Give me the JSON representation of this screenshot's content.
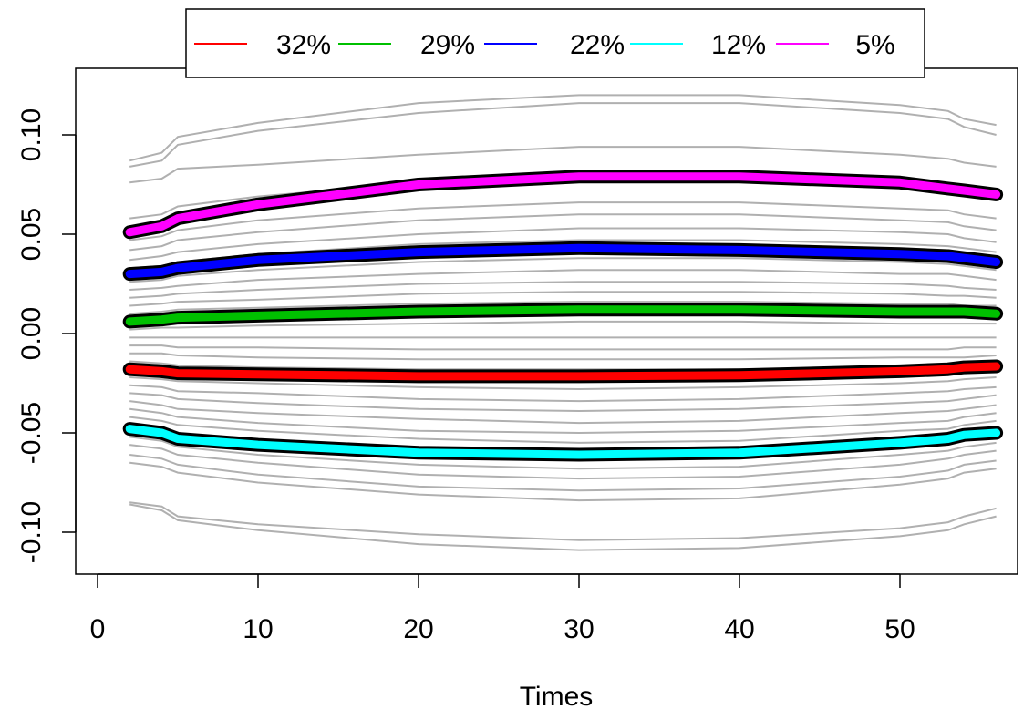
{
  "chart_data": {
    "type": "line",
    "title": "",
    "xlabel": "Times",
    "ylabel": "",
    "xlim": [
      0,
      56
    ],
    "ylim": [
      -0.12,
      0.125
    ],
    "x_ticks": [
      0,
      10,
      20,
      30,
      40,
      50
    ],
    "x_tick_labels": [
      "0",
      "10",
      "20",
      "30",
      "40",
      "50"
    ],
    "y_ticks": [
      -0.1,
      -0.05,
      0.0,
      0.05,
      0.1
    ],
    "y_tick_labels": [
      "-0.10",
      "-0.05",
      "0.00",
      "0.05",
      "0.10"
    ],
    "grid": false,
    "legend_position": "top",
    "x": [
      2,
      4,
      5,
      10,
      20,
      30,
      40,
      50,
      53,
      54,
      56
    ],
    "series": [
      {
        "name": "32%",
        "color": "#ff0000",
        "values": [
          -0.018,
          -0.019,
          -0.02,
          -0.0205,
          -0.0215,
          -0.0215,
          -0.021,
          -0.019,
          -0.018,
          -0.017,
          -0.0165
        ]
      },
      {
        "name": "29%",
        "color": "#00c000",
        "values": [
          0.006,
          0.007,
          0.008,
          0.009,
          0.011,
          0.012,
          0.012,
          0.011,
          0.011,
          0.011,
          0.01
        ]
      },
      {
        "name": "22%",
        "color": "#0000ff",
        "values": [
          0.03,
          0.031,
          0.033,
          0.037,
          0.041,
          0.043,
          0.042,
          0.04,
          0.039,
          0.038,
          0.036
        ]
      },
      {
        "name": "12%",
        "color": "#00ffff",
        "values": [
          -0.048,
          -0.05,
          -0.053,
          -0.056,
          -0.06,
          -0.061,
          -0.06,
          -0.055,
          -0.053,
          -0.051,
          -0.05
        ]
      },
      {
        "name": "5%",
        "color": "#ff00ff",
        "values": [
          0.051,
          0.054,
          0.058,
          0.065,
          0.075,
          0.079,
          0.079,
          0.076,
          0.073,
          0.072,
          0.07
        ]
      }
    ],
    "background_series_color": "#b0b0b0",
    "background_series": [
      [
        0.087,
        0.091,
        0.099,
        0.106,
        0.116,
        0.12,
        0.12,
        0.115,
        0.112,
        0.108,
        0.105
      ],
      [
        0.084,
        0.087,
        0.095,
        0.102,
        0.111,
        0.116,
        0.116,
        0.111,
        0.108,
        0.104,
        0.1
      ],
      [
        0.076,
        0.078,
        0.083,
        0.085,
        0.09,
        0.094,
        0.094,
        0.09,
        0.088,
        0.086,
        0.084
      ],
      [
        0.058,
        0.06,
        0.064,
        0.069,
        0.076,
        0.08,
        0.08,
        0.077,
        0.075,
        0.073,
        0.071
      ],
      [
        0.047,
        0.049,
        0.052,
        0.057,
        0.063,
        0.066,
        0.066,
        0.063,
        0.062,
        0.06,
        0.058
      ],
      [
        0.042,
        0.044,
        0.047,
        0.051,
        0.057,
        0.06,
        0.06,
        0.057,
        0.056,
        0.054,
        0.052
      ],
      [
        0.037,
        0.039,
        0.041,
        0.045,
        0.05,
        0.053,
        0.053,
        0.051,
        0.05,
        0.048,
        0.046
      ],
      [
        0.033,
        0.034,
        0.036,
        0.04,
        0.045,
        0.047,
        0.047,
        0.045,
        0.044,
        0.043,
        0.041
      ],
      [
        0.026,
        0.027,
        0.029,
        0.032,
        0.036,
        0.038,
        0.038,
        0.036,
        0.035,
        0.034,
        0.032
      ],
      [
        0.022,
        0.023,
        0.024,
        0.027,
        0.03,
        0.032,
        0.032,
        0.03,
        0.03,
        0.029,
        0.027
      ],
      [
        0.018,
        0.019,
        0.02,
        0.022,
        0.025,
        0.026,
        0.026,
        0.025,
        0.024,
        0.023,
        0.022
      ],
      [
        0.014,
        0.015,
        0.016,
        0.017,
        0.02,
        0.021,
        0.021,
        0.02,
        0.019,
        0.019,
        0.018
      ],
      [
        0.01,
        0.011,
        0.012,
        0.013,
        0.015,
        0.016,
        0.016,
        0.015,
        0.015,
        0.014,
        0.014
      ],
      [
        0.002,
        0.003,
        0.003,
        0.004,
        0.005,
        0.006,
        0.006,
        0.005,
        0.005,
        0.005,
        0.005
      ],
      [
        -0.002,
        -0.002,
        -0.002,
        -0.002,
        -0.002,
        -0.002,
        -0.002,
        -0.002,
        -0.002,
        -0.002,
        -0.002
      ],
      [
        -0.006,
        -0.006,
        -0.007,
        -0.007,
        -0.008,
        -0.008,
        -0.008,
        -0.008,
        -0.008,
        -0.007,
        -0.007
      ],
      [
        -0.01,
        -0.01,
        -0.011,
        -0.012,
        -0.013,
        -0.013,
        -0.013,
        -0.012,
        -0.012,
        -0.012,
        -0.011
      ],
      [
        -0.014,
        -0.015,
        -0.016,
        -0.017,
        -0.018,
        -0.018,
        -0.018,
        -0.017,
        -0.016,
        -0.016,
        -0.015
      ],
      [
        -0.022,
        -0.023,
        -0.024,
        -0.025,
        -0.027,
        -0.028,
        -0.027,
        -0.025,
        -0.024,
        -0.023,
        -0.022
      ],
      [
        -0.026,
        -0.027,
        -0.029,
        -0.03,
        -0.033,
        -0.034,
        -0.033,
        -0.03,
        -0.029,
        -0.028,
        -0.027
      ],
      [
        -0.03,
        -0.031,
        -0.033,
        -0.035,
        -0.038,
        -0.039,
        -0.038,
        -0.035,
        -0.034,
        -0.033,
        -0.031
      ],
      [
        -0.034,
        -0.036,
        -0.038,
        -0.04,
        -0.043,
        -0.045,
        -0.044,
        -0.04,
        -0.039,
        -0.038,
        -0.036
      ],
      [
        -0.038,
        -0.04,
        -0.042,
        -0.045,
        -0.049,
        -0.05,
        -0.049,
        -0.045,
        -0.044,
        -0.042,
        -0.04
      ],
      [
        -0.042,
        -0.044,
        -0.046,
        -0.049,
        -0.053,
        -0.055,
        -0.054,
        -0.049,
        -0.048,
        -0.046,
        -0.044
      ],
      [
        -0.052,
        -0.054,
        -0.057,
        -0.061,
        -0.066,
        -0.068,
        -0.067,
        -0.061,
        -0.059,
        -0.057,
        -0.055
      ],
      [
        -0.056,
        -0.058,
        -0.061,
        -0.065,
        -0.071,
        -0.073,
        -0.072,
        -0.066,
        -0.063,
        -0.061,
        -0.059
      ],
      [
        -0.061,
        -0.063,
        -0.066,
        -0.071,
        -0.077,
        -0.079,
        -0.078,
        -0.072,
        -0.069,
        -0.066,
        -0.064
      ],
      [
        -0.065,
        -0.067,
        -0.07,
        -0.075,
        -0.081,
        -0.084,
        -0.083,
        -0.076,
        -0.073,
        -0.07,
        -0.068
      ],
      [
        -0.085,
        -0.087,
        -0.092,
        -0.096,
        -0.101,
        -0.104,
        -0.103,
        -0.098,
        -0.095,
        -0.092,
        -0.088
      ],
      [
        -0.086,
        -0.089,
        -0.094,
        -0.099,
        -0.106,
        -0.109,
        -0.108,
        -0.102,
        -0.099,
        -0.096,
        -0.092
      ]
    ]
  }
}
